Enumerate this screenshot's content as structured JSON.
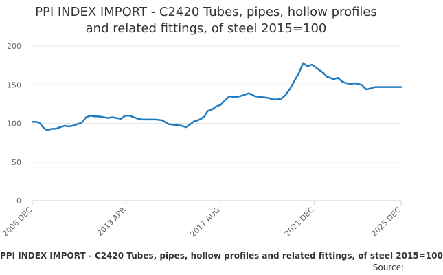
{
  "title_line1": "PPI INDEX IMPORT - C2420 Tubes, pipes, hollow profiles",
  "title_line2": "and related fittings, of steel 2015=100",
  "footer_caption": "PPI INDEX IMPORT - C2420 Tubes, pipes, hollow profiles and related fittings, of steel 2015=100",
  "source_label": "Source:",
  "colors": {
    "series": "#1f7bbf",
    "grid": "#e6e6e6",
    "text": "#333333",
    "axis_text": "#666666"
  },
  "chart_data": {
    "type": "line",
    "title": "PPI INDEX IMPORT - C2420 Tubes, pipes, hollow profiles and related fittings, of steel 2015=100",
    "xlabel": "",
    "ylabel": "",
    "ylim": [
      0,
      200
    ],
    "y_ticks": [
      0,
      50,
      100,
      150,
      200
    ],
    "x_range": [
      2008.917,
      2025.917
    ],
    "x_ticks": [
      {
        "value": 2008.917,
        "label": "2008 DEC"
      },
      {
        "value": 2013.25,
        "label": "2013 APR"
      },
      {
        "value": 2017.583,
        "label": "2017 AUG"
      },
      {
        "value": 2021.917,
        "label": "2021 DEC"
      },
      {
        "value": 2025.917,
        "label": "2025 DEC"
      }
    ],
    "grid": true,
    "legend": "none",
    "series": [
      {
        "name": "PPI INDEX IMPORT - C2420 Tubes, pipes, hollow profiles and related fittings, of steel 2015=100",
        "x": [
          2008.917,
          2009.1,
          2009.25,
          2009.45,
          2009.6,
          2009.8,
          2010.0,
          2010.2,
          2010.4,
          2010.6,
          2010.8,
          2011.0,
          2011.2,
          2011.4,
          2011.6,
          2011.8,
          2012.0,
          2012.2,
          2012.4,
          2012.6,
          2012.8,
          2013.0,
          2013.2,
          2013.4,
          2013.6,
          2013.8,
          2014.0,
          2014.3,
          2014.6,
          2014.9,
          2015.2,
          2015.5,
          2015.8,
          2016.0,
          2016.2,
          2016.4,
          2016.55,
          2016.7,
          2016.85,
          2017.0,
          2017.2,
          2017.4,
          2017.6,
          2017.8,
          2018.0,
          2018.3,
          2018.6,
          2018.9,
          2019.2,
          2019.5,
          2019.8,
          2020.0,
          2020.2,
          2020.4,
          2020.6,
          2020.8,
          2021.0,
          2021.2,
          2021.4,
          2021.6,
          2021.8,
          2022.0,
          2022.2,
          2022.35,
          2022.5,
          2022.65,
          2022.8,
          2023.0,
          2023.2,
          2023.4,
          2023.6,
          2023.8,
          2023.95,
          2024.1,
          2024.3,
          2024.5,
          2024.7,
          2024.9,
          2025.1,
          2025.3,
          2025.5,
          2025.7,
          2025.917
        ],
        "values": [
          102,
          102,
          101,
          94,
          91,
          93,
          93,
          95,
          97,
          96,
          97,
          99,
          101,
          108,
          110,
          109,
          109,
          108,
          107,
          108,
          107,
          106,
          110,
          110,
          108,
          106,
          105,
          105,
          105,
          104,
          99,
          98,
          97,
          95,
          99,
          103,
          104,
          106,
          109,
          116,
          118,
          122,
          124,
          130,
          135,
          134,
          136,
          139,
          135,
          134,
          133,
          131,
          131,
          132,
          137,
          145,
          155,
          165,
          178,
          174,
          176,
          172,
          168,
          165,
          160,
          159,
          157,
          159,
          154,
          152,
          151,
          152,
          151,
          150,
          144,
          145,
          147,
          147,
          147,
          147,
          147,
          147,
          147
        ]
      }
    ]
  }
}
